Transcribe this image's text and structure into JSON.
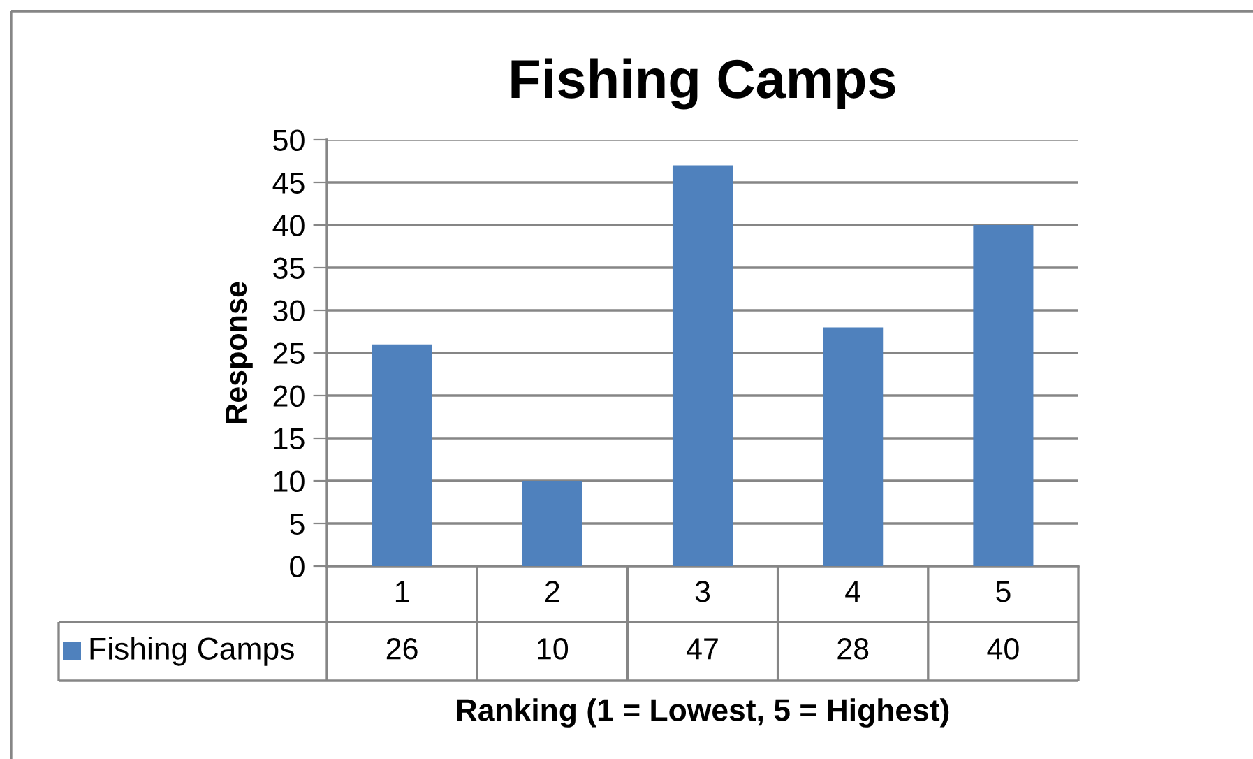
{
  "chart_data": {
    "type": "bar",
    "title": "Fishing Camps",
    "xlabel": "Ranking (1 = Lowest, 5 = Highest)",
    "ylabel": "Response",
    "categories": [
      "1",
      "2",
      "3",
      "4",
      "5"
    ],
    "series": [
      {
        "name": "Fishing Camps",
        "color": "#4f81bd",
        "values": [
          26,
          10,
          47,
          28,
          40
        ]
      }
    ],
    "ylim": [
      0,
      50
    ],
    "yticks": [
      0,
      5,
      10,
      15,
      20,
      25,
      30,
      35,
      40,
      45,
      50
    ],
    "grid": "y",
    "legend": "bottom",
    "data_labels": true
  }
}
